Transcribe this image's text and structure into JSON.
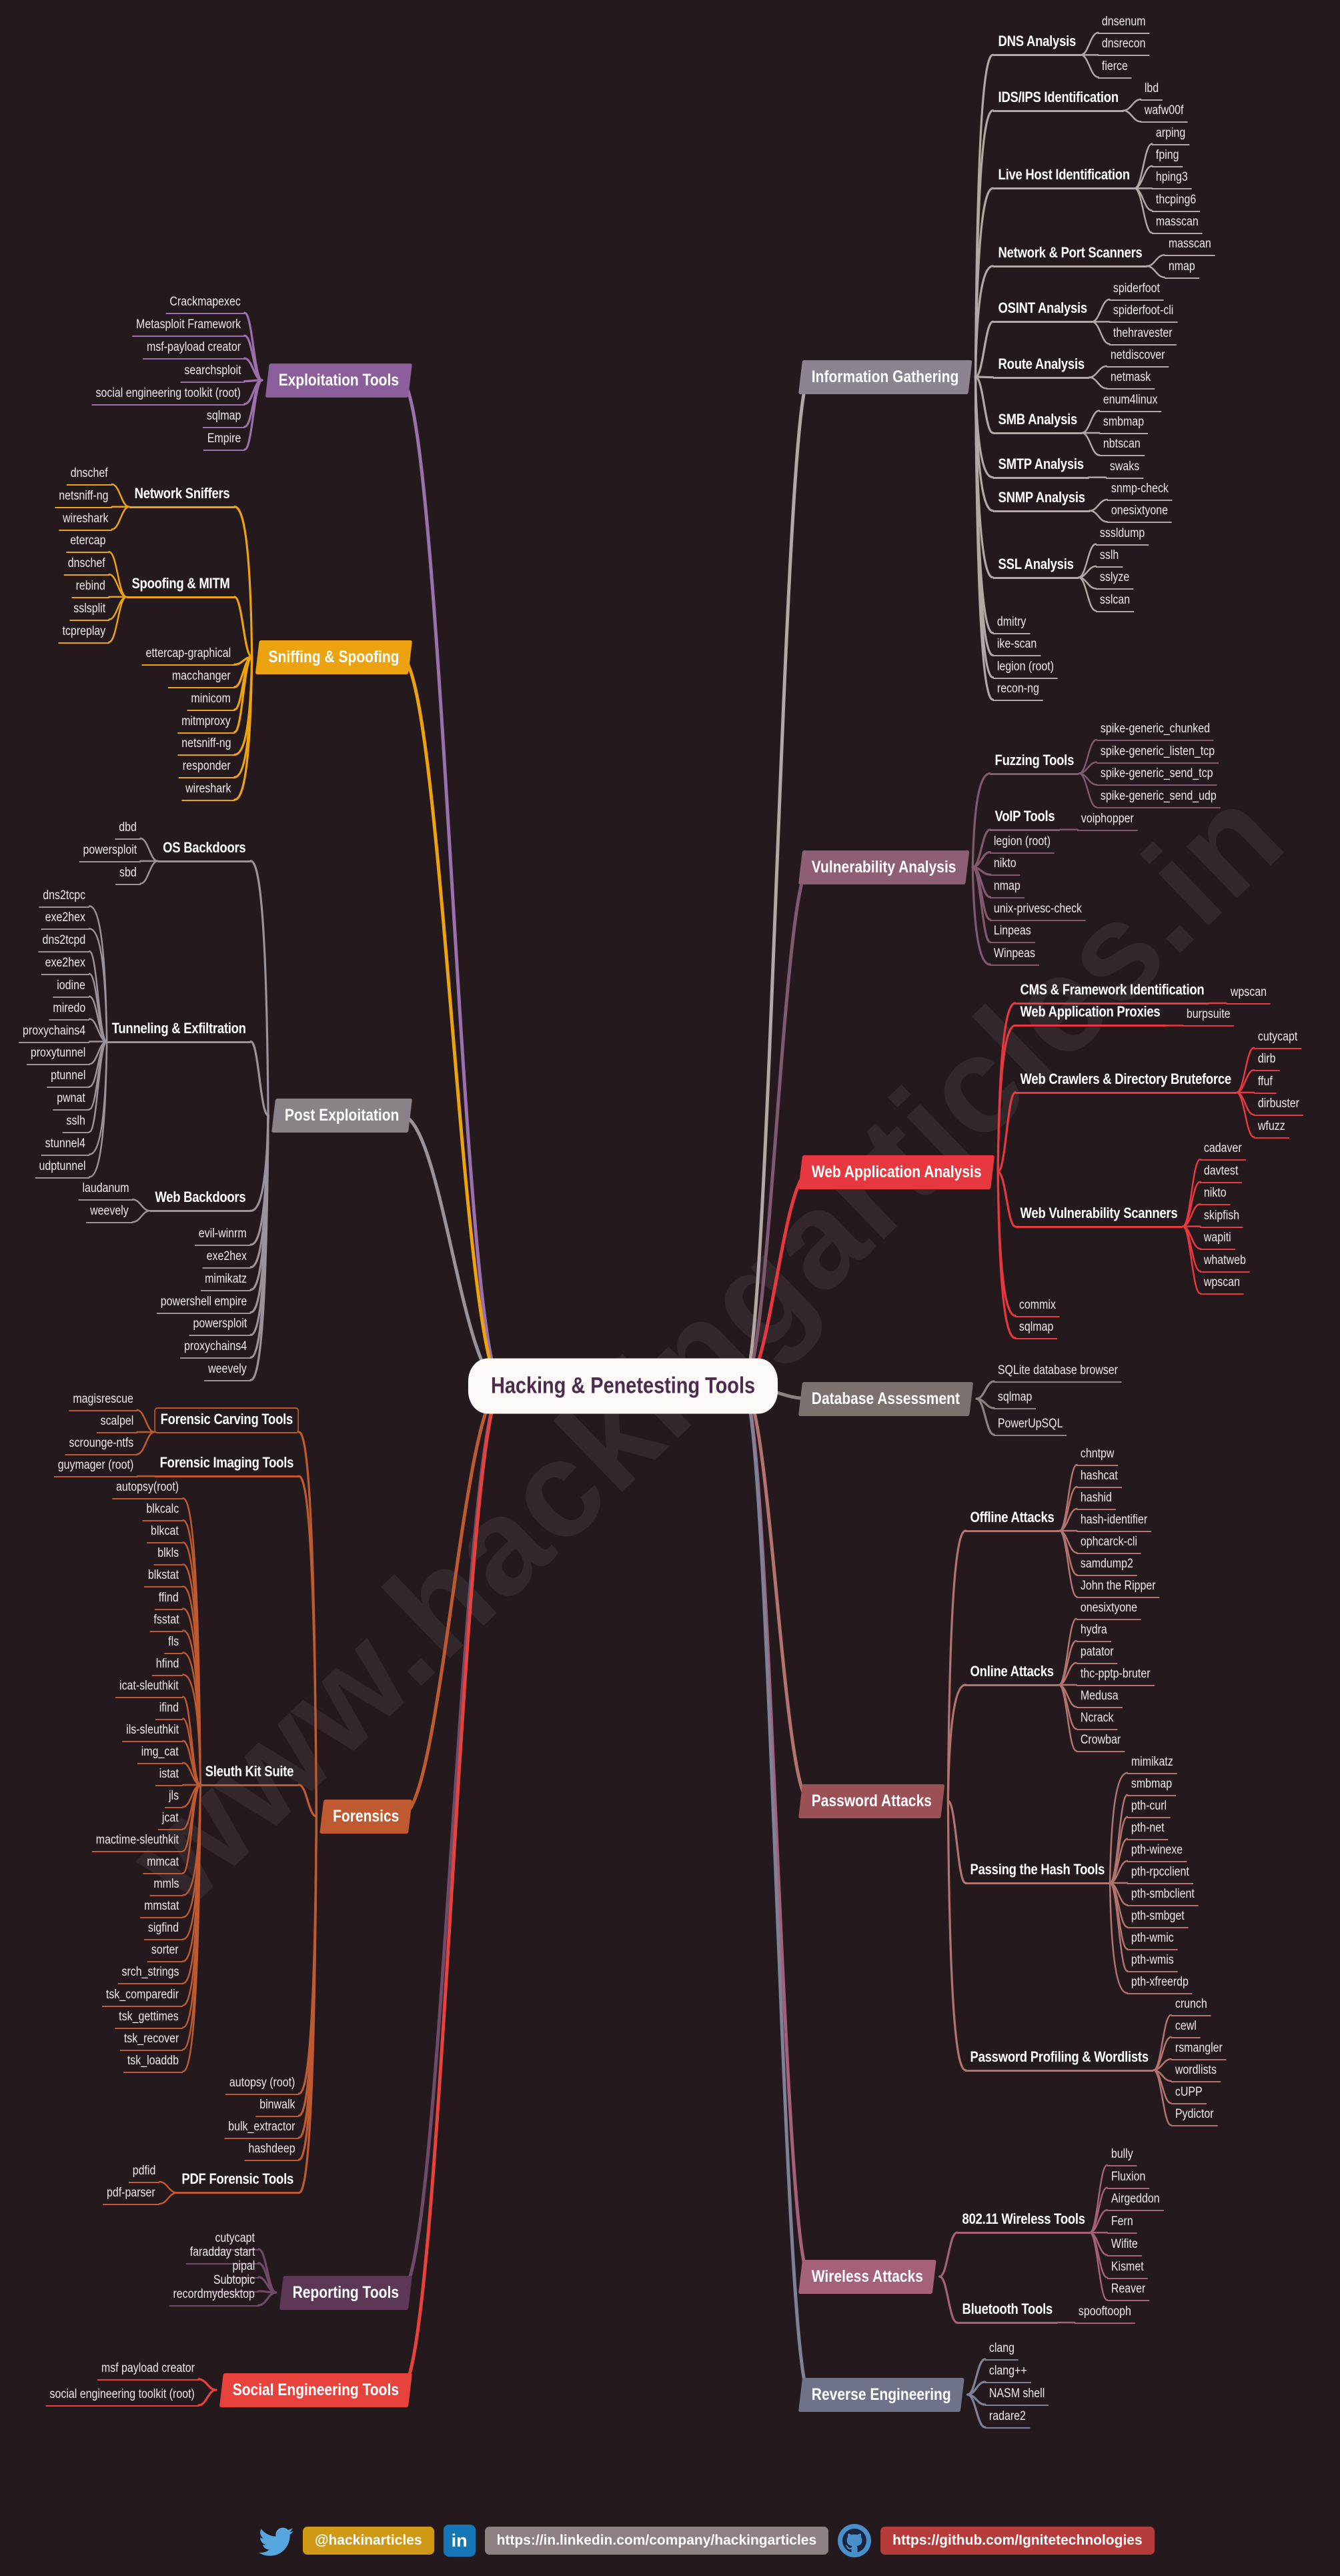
{
  "background": "#241a1e",
  "watermark": "www.hackingarticles.in",
  "watermark_color": "rgba(240,228,240,0.07)",
  "center": {
    "label": "Hacking & Penetesting Tools",
    "bg": "#fcf9f7",
    "text_color": "#4c2b4e"
  },
  "branches": [
    {
      "label": "Information Gathering",
      "color": "#8c8391",
      "line_color": "#b3a8a6",
      "children": [
        {
          "label": "DNS Analysis",
          "children": [
            {
              "label": "dnsenum"
            },
            {
              "label": "dnsrecon"
            },
            {
              "label": "fierce"
            }
          ]
        },
        {
          "label": "IDS/IPS Identification",
          "children": [
            {
              "label": "lbd"
            },
            {
              "label": "wafw00f"
            }
          ]
        },
        {
          "label": "Live Host Identification",
          "children": [
            {
              "label": "arping"
            },
            {
              "label": "fping"
            },
            {
              "label": "hping3"
            },
            {
              "label": "thcping6"
            },
            {
              "label": "masscan"
            }
          ]
        },
        {
          "label": "Network & Port Scanners",
          "children": [
            {
              "label": "masscan"
            },
            {
              "label": "nmap"
            }
          ]
        },
        {
          "label": "OSINT Analysis",
          "children": [
            {
              "label": "spiderfoot"
            },
            {
              "label": "spiderfoot-cli"
            },
            {
              "label": "thehravester"
            }
          ]
        },
        {
          "label": "Route Analysis",
          "children": [
            {
              "label": "netdiscover"
            },
            {
              "label": "netmask"
            }
          ]
        },
        {
          "label": "SMB Analysis",
          "children": [
            {
              "label": "enum4linux"
            },
            {
              "label": "smbmap"
            },
            {
              "label": "nbtscan"
            }
          ]
        },
        {
          "label": "SMTP Analysis",
          "children": [
            {
              "label": "swaks"
            }
          ]
        },
        {
          "label": "SNMP Analysis",
          "children": [
            {
              "label": "snmp-check"
            },
            {
              "label": "onesixtyone"
            }
          ]
        },
        {
          "label": "SSL Analysis",
          "children": [
            {
              "label": "sssldump"
            },
            {
              "label": "sslh"
            },
            {
              "label": "sslyze"
            },
            {
              "label": "sslcan"
            }
          ]
        },
        {
          "label": "dmitry"
        },
        {
          "label": "ike-scan"
        },
        {
          "label": "legion (root)"
        },
        {
          "label": "recon-ng"
        }
      ]
    },
    {
      "label": "Vulnerability Analysis",
      "color": "#8d5e74",
      "line_color": "#82586f",
      "children": [
        {
          "label": "Fuzzing Tools",
          "children": [
            {
              "label": "spike-generic_chunked"
            },
            {
              "label": "spike-generic_listen_tcp"
            },
            {
              "label": "spike-generic_send_tcp"
            },
            {
              "label": "spike-generic_send_udp"
            }
          ]
        },
        {
          "label": "VoIP Tools",
          "children": [
            {
              "label": "voiphopper"
            }
          ]
        },
        {
          "label": "legion (root)"
        },
        {
          "label": "nikto"
        },
        {
          "label": "nmap"
        },
        {
          "label": "unix-privesc-check"
        },
        {
          "label": "Linpeas"
        },
        {
          "label": "Winpeas"
        }
      ]
    },
    {
      "label": "Web Application Analysis",
      "color": "#e6383e",
      "line_color": "#e6383e",
      "children": [
        {
          "label": "CMS & Framework Identification",
          "children": [
            {
              "label": "wpscan"
            }
          ]
        },
        {
          "label": "Web Application Proxies",
          "children": [
            {
              "label": "burpsuite"
            }
          ]
        },
        {
          "label": "Web Crawlers & Directory Bruteforce",
          "children": [
            {
              "label": "cutycapt"
            },
            {
              "label": "dirb"
            },
            {
              "label": "ffuf"
            },
            {
              "label": "dirbuster"
            },
            {
              "label": "wfuzz"
            }
          ]
        },
        {
          "label": "Web Vulnerability Scanners",
          "children": [
            {
              "label": "cadaver"
            },
            {
              "label": "davtest"
            },
            {
              "label": "nikto"
            },
            {
              "label": "skipfish"
            },
            {
              "label": "wapiti"
            },
            {
              "label": "whatweb"
            },
            {
              "label": "wpscan"
            }
          ]
        },
        {
          "label": "commix"
        },
        {
          "label": "sqlmap"
        }
      ]
    },
    {
      "label": "Database Assessment",
      "color": "#7d7170",
      "line_color": "#8e8280",
      "children": [
        {
          "label": "SQLite database browser"
        },
        {
          "label": "sqlmap"
        },
        {
          "label": "PowerUpSQL"
        }
      ]
    },
    {
      "label": "Password Attacks",
      "color": "#9b5056",
      "line_color": "#b3736e",
      "children": [
        {
          "label": "Offline Attacks",
          "children": [
            {
              "label": "chntpw"
            },
            {
              "label": "hashcat"
            },
            {
              "label": "hashid"
            },
            {
              "label": "hash-identifier"
            },
            {
              "label": "ophcarck-cli"
            },
            {
              "label": "samdump2"
            },
            {
              "label": "John the Ripper"
            }
          ]
        },
        {
          "label": "Online Attacks",
          "children": [
            {
              "label": "onesixtyone"
            },
            {
              "label": "hydra"
            },
            {
              "label": "patator"
            },
            {
              "label": "thc-pptp-bruter"
            },
            {
              "label": "Medusa"
            },
            {
              "label": "Ncrack"
            },
            {
              "label": "Crowbar"
            }
          ]
        },
        {
          "label": "Passing the Hash Tools",
          "children": [
            {
              "label": "mimikatz"
            },
            {
              "label": "smbmap"
            },
            {
              "label": "pth-curl"
            },
            {
              "label": "pth-net"
            },
            {
              "label": "pth-winexe"
            },
            {
              "label": "pth-rpcclient"
            },
            {
              "label": "pth-smbclient"
            },
            {
              "label": "pth-smbget"
            },
            {
              "label": "pth-wmic"
            },
            {
              "label": "pth-wmis"
            },
            {
              "label": "pth-xfreerdp"
            }
          ]
        },
        {
          "label": "Password Profiling & Wordlists",
          "children": [
            {
              "label": "crunch"
            },
            {
              "label": "cewl"
            },
            {
              "label": "rsmangler"
            },
            {
              "label": "wordlists"
            },
            {
              "label": "cUPP"
            },
            {
              "label": "Pydictor"
            }
          ]
        }
      ]
    },
    {
      "label": "Wireless Attacks",
      "color": "#a5607a",
      "line_color": "#a5607a",
      "children": [
        {
          "label": "802.11 Wireless Tools",
          "children": [
            {
              "label": "bully"
            },
            {
              "label": "Fluxion"
            },
            {
              "label": "Airgeddon"
            },
            {
              "label": "Fern"
            },
            {
              "label": "Wifite"
            },
            {
              "label": "Kismet"
            },
            {
              "label": "Reaver"
            }
          ]
        },
        {
          "label": "Bluetooth Tools",
          "children": [
            {
              "label": "spooftooph"
            }
          ]
        }
      ]
    },
    {
      "label": "Reverse Engineering",
      "color": "#6f7389",
      "line_color": "#7e8298",
      "children": [
        {
          "label": "clang"
        },
        {
          "label": "clang++"
        },
        {
          "label": "NASM shell"
        },
        {
          "label": "radare2"
        }
      ]
    },
    {
      "label": "Exploitation Tools",
      "color": "#8b5e9c",
      "line_color": "#9c6fad",
      "children": [
        {
          "label": "Crackmapexec"
        },
        {
          "label": "Metasploit Framework"
        },
        {
          "label": "msf-payload creator"
        },
        {
          "label": "searchsploit"
        },
        {
          "label": "social engineering toolkit (root)"
        },
        {
          "label": "sqlmap"
        },
        {
          "label": "Empire"
        }
      ]
    },
    {
      "label": "Sniffing & Spoofing",
      "color": "#eda30f",
      "line_color": "#eda30f",
      "children": [
        {
          "label": "Network Sniffers",
          "children": [
            {
              "label": "dnschef"
            },
            {
              "label": "netsniff-ng"
            },
            {
              "label": "wireshark"
            }
          ]
        },
        {
          "label": "Spoofing & MITM",
          "children": [
            {
              "label": "etercap"
            },
            {
              "label": "dnschef"
            },
            {
              "label": "rebind"
            },
            {
              "label": "sslsplit"
            },
            {
              "label": "tcpreplay"
            }
          ]
        },
        {
          "label": "ettercap-graphical"
        },
        {
          "label": "macchanger"
        },
        {
          "label": "minicom"
        },
        {
          "label": "mitmproxy"
        },
        {
          "label": "netsniff-ng"
        },
        {
          "label": "responder"
        },
        {
          "label": "wireshark"
        }
      ]
    },
    {
      "label": "Post Exploitation",
      "color": "#8a8289",
      "line_color": "#9b939a",
      "children": [
        {
          "label": "OS Backdoors",
          "children": [
            {
              "label": "dbd"
            },
            {
              "label": "powersploit"
            },
            {
              "label": "sbd"
            }
          ]
        },
        {
          "label": "Tunneling & Exfiltration",
          "children": [
            {
              "label": "dns2tcpc"
            },
            {
              "label": "exe2hex"
            },
            {
              "label": "dns2tcpd"
            },
            {
              "label": "exe2hex"
            },
            {
              "label": "iodine"
            },
            {
              "label": "miredo"
            },
            {
              "label": "proxychains4"
            },
            {
              "label": "proxytunnel"
            },
            {
              "label": "ptunnel"
            },
            {
              "label": "pwnat"
            },
            {
              "label": "sslh"
            },
            {
              "label": "stunnel4"
            },
            {
              "label": "udptunnel"
            }
          ]
        },
        {
          "label": "Web Backdoors",
          "children": [
            {
              "label": "laudanum"
            },
            {
              "label": "weevely"
            }
          ]
        },
        {
          "label": "evil-winrm"
        },
        {
          "label": "exe2hex"
        },
        {
          "label": "mimikatz"
        },
        {
          "label": "powershell empire"
        },
        {
          "label": "powersploit"
        },
        {
          "label": "proxychains4"
        },
        {
          "label": "weevely"
        }
      ]
    },
    {
      "label": "Forensics",
      "color": "#bf5a30",
      "line_color": "#bf5a30",
      "children": [
        {
          "label": "Forensic Carving Tools",
          "boxed": true,
          "children": [
            {
              "label": "magisrescue"
            },
            {
              "label": "scalpel"
            },
            {
              "label": "scrounge-ntfs"
            }
          ]
        },
        {
          "label": "Forensic Imaging Tools",
          "children": [
            {
              "label": "guymager (root)"
            }
          ]
        },
        {
          "label": "Sleuth Kit Suite",
          "children": [
            {
              "label": "autopsy(root)"
            },
            {
              "label": "blkcalc"
            },
            {
              "label": "blkcat"
            },
            {
              "label": "blkls"
            },
            {
              "label": "blkstat"
            },
            {
              "label": "ffind"
            },
            {
              "label": "fsstat"
            },
            {
              "label": "fls"
            },
            {
              "label": "hfind"
            },
            {
              "label": "icat-sleuthkit"
            },
            {
              "label": "ifind"
            },
            {
              "label": "ils-sleuthkit"
            },
            {
              "label": "img_cat"
            },
            {
              "label": "istat"
            },
            {
              "label": "jls"
            },
            {
              "label": "jcat"
            },
            {
              "label": "mactime-sleuthkit"
            },
            {
              "label": "mmcat"
            },
            {
              "label": "mmls"
            },
            {
              "label": "mmstat"
            },
            {
              "label": "sigfind"
            },
            {
              "label": "sorter"
            },
            {
              "label": "srch_strings"
            },
            {
              "label": "tsk_comparedir"
            },
            {
              "label": "tsk_gettimes"
            },
            {
              "label": "tsk_recover"
            },
            {
              "label": "tsk_loaddb"
            }
          ]
        },
        {
          "label": "autopsy (root)"
        },
        {
          "label": "binwalk"
        },
        {
          "label": "bulk_extractor"
        },
        {
          "label": "hashdeep"
        },
        {
          "label": "PDF Forensic Tools",
          "children": [
            {
              "label": "pdfid"
            },
            {
              "label": "pdf-parser"
            }
          ]
        }
      ]
    },
    {
      "label": "Reporting Tools",
      "color": "#5c3756",
      "line_color": "#6f4a69",
      "children": [
        {
          "label": "cutycapt"
        },
        {
          "label": "faradday start"
        },
        {
          "label": "pipal"
        },
        {
          "label": "Subtopic"
        },
        {
          "label": "recordmydesktop"
        }
      ]
    },
    {
      "label": "Social Engineering Tools",
      "color": "#e8423d",
      "line_color": "#e8423d",
      "children": [
        {
          "label": "msf payload creator"
        },
        {
          "label": "social engineering toolkit (root)"
        }
      ]
    }
  ],
  "footer": {
    "twitter_handle": "@hackinarticles",
    "linkedin_icon_text": "in",
    "linkedin_url": "https://in.linkedin.com/company/hackingarticles",
    "github_url": "https://github.com/Ignitetechnologies",
    "twitter_color": "#55a7dd",
    "linkedin_icon_color": "#1577b5",
    "github_circle_color": "#4a90c8",
    "github_cat_color": "#1b2440",
    "handle_box_color": "#cf9915",
    "linkedin_box_color": "#8d8080",
    "github_box_color": "#b63c3c"
  }
}
